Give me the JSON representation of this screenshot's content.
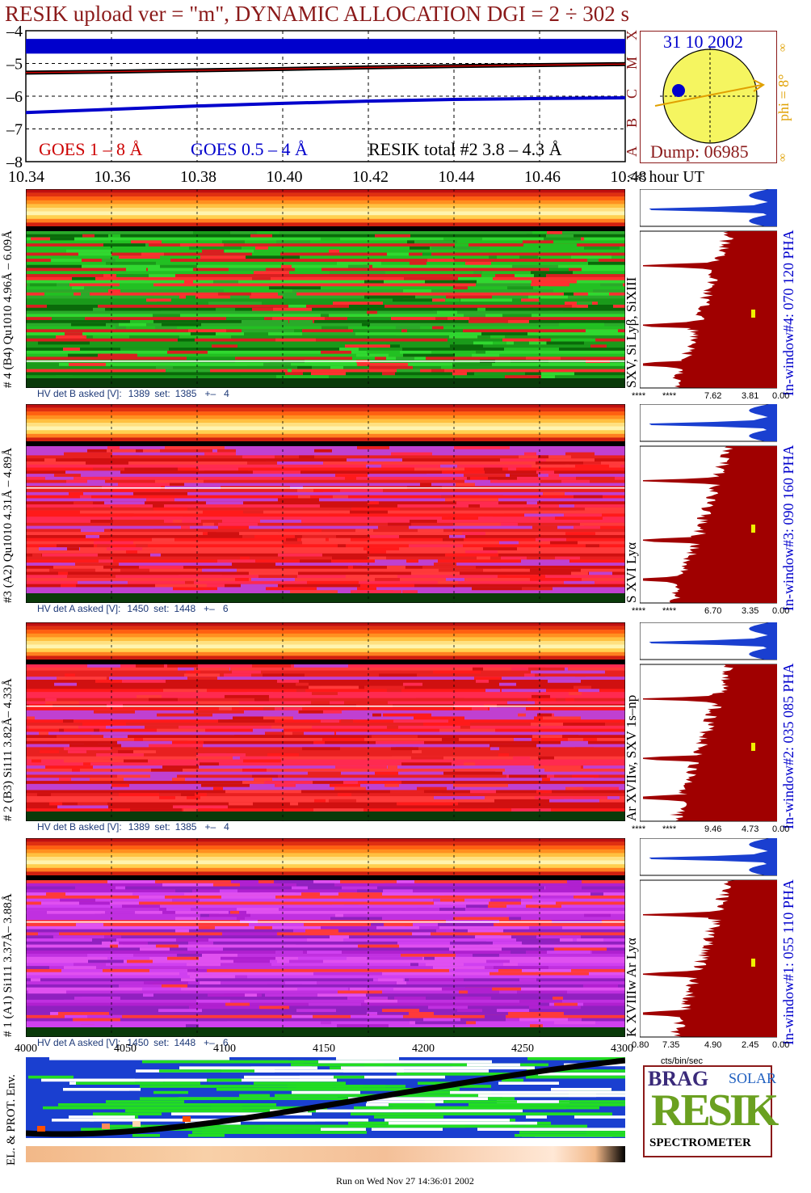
{
  "title": "RESIK upload ver = \"m\", DYNAMIC ALLOCATION  DGI =   2 ÷ 302 s",
  "date": "31 10 2002",
  "dump": "Dump: 06985",
  "phi_label": "phi =  8°",
  "phi_marks": [
    "∞",
    "∞"
  ],
  "goes_classes": [
    "X",
    "M",
    "C",
    "B",
    "A"
  ],
  "legend": {
    "goes_long": "GOES 1 – 8 Å",
    "goes_short": "GOES 0.5 – 4 Å",
    "resik_total": "RESIK total #2  3.8 – 4.3 Å"
  },
  "colors": {
    "title": "#8b1a1a",
    "goes_long": "#cc0000",
    "goes_short": "#0000cc",
    "orange": "#e0a000",
    "hv_text": "#1e3a78",
    "histogram": "#a00000",
    "histogram_top": "#1a3fd0",
    "sun": "#f5f560"
  },
  "time_axis": {
    "ticks": [
      "10.34",
      "10.36",
      "10.38",
      "10.40",
      "10.42",
      "10.44",
      "10.46",
      "10.48"
    ],
    "unit": "<< hour UT"
  },
  "footer_axis": {
    "ticks": [
      "4000",
      "4050",
      "4100",
      "4150",
      "4200",
      "4250",
      "4300"
    ]
  },
  "channels": [
    {
      "left_label": "# 4 (B4) Qu1010 4.96Å – 6.09Å",
      "lines": "SXV, Si Lyβ, SiXIII",
      "window": "In-window#4:  070 120 PHA",
      "hv": {
        "asked": "HV det B asked [V]:",
        "asked_val": "1389",
        "set": "set:",
        "set_val": "1385",
        "pm": "+–",
        "pm_val": "4"
      },
      "stars": [
        "****",
        "****",
        "7.62",
        "3.81",
        "0.00"
      ],
      "palette": "green"
    },
    {
      "left_label": "#3 (A2) Qu1010  4.31Å – 4.89Å",
      "lines": "S XVI Lyα",
      "window": "In-window#3:  090 160 PHA",
      "hv": {
        "asked": "HV det A asked [V]:",
        "asked_val": "1450",
        "set": "set:",
        "set_val": "1448",
        "pm": "+–",
        "pm_val": "6"
      },
      "stars": [
        "****",
        "****",
        "6.70",
        "3.35",
        "0.00"
      ],
      "palette": "red"
    },
    {
      "left_label": "# 2 (B3) Si111  3.82Å– 4.33Å",
      "lines": "Ar XVIIw,  SXV 1s–np",
      "window": "In-window#2:  035 085 PHA",
      "hv": {
        "asked": "HV det B asked [V]:",
        "asked_val": "1389",
        "set": "set:",
        "set_val": "1385",
        "pm": "+–",
        "pm_val": "4"
      },
      "stars": [
        "****",
        "****",
        "9.46",
        "4.73",
        "0.00"
      ],
      "palette": "red"
    },
    {
      "left_label": "# 1 (A1) Si111  3.37Å– 3.88Å",
      "lines": "K XVIIIw  Ar Lyα",
      "window": "In-window#1:  055 110 PHA",
      "hv": {
        "asked": "HV det A asked [V]:",
        "asked_val": "1450",
        "set": "set:",
        "set_val": "1448",
        "pm": "+–",
        "pm_val": "6"
      },
      "stars": [
        "0.80",
        "7.35",
        "4.90",
        "2.45",
        "0.00"
      ],
      "palette": "purple"
    }
  ],
  "cts_unit": "cts/bin/sec",
  "env_label": "EL. & PROT. Env.",
  "logo": {
    "big": "RESIK",
    "small": [
      "BRAG",
      "SOLAR"
    ],
    "caption": "SPECTROMETER"
  },
  "run_on": "Run on Wed Nov 27 14:36:01 2002",
  "chart_data": {
    "type": "line",
    "title": "RESIK upload ver = \"m\", DYNAMIC ALLOCATION  DGI =   2 ÷ 302 s",
    "xlabel": "<< hour UT",
    "ylabel": "",
    "xlim": [
      10.34,
      10.48
    ],
    "ylim": [
      -8,
      -4
    ],
    "yticks": [
      "–4",
      "–5",
      "–6",
      "–7",
      "–8"
    ],
    "grid": true,
    "x": [
      10.34,
      10.36,
      10.38,
      10.4,
      10.42,
      10.44,
      10.46,
      10.48
    ],
    "series": [
      {
        "name": "GOES 1 – 8 Å",
        "values": [
          -5.28,
          -5.25,
          -5.21,
          -5.17,
          -5.12,
          -5.08,
          -5.05,
          -5.02
        ]
      },
      {
        "name": "GOES 0.5 – 4 Å",
        "values": [
          -6.5,
          -6.4,
          -6.3,
          -6.22,
          -6.15,
          -6.1,
          -6.07,
          -6.05
        ]
      },
      {
        "name": "RESIK total #2  3.8 – 4.3 Å",
        "values": [
          -4.35,
          -4.35,
          -4.35,
          -4.35,
          -4.35,
          -4.35,
          -4.35,
          -4.35
        ]
      }
    ]
  }
}
